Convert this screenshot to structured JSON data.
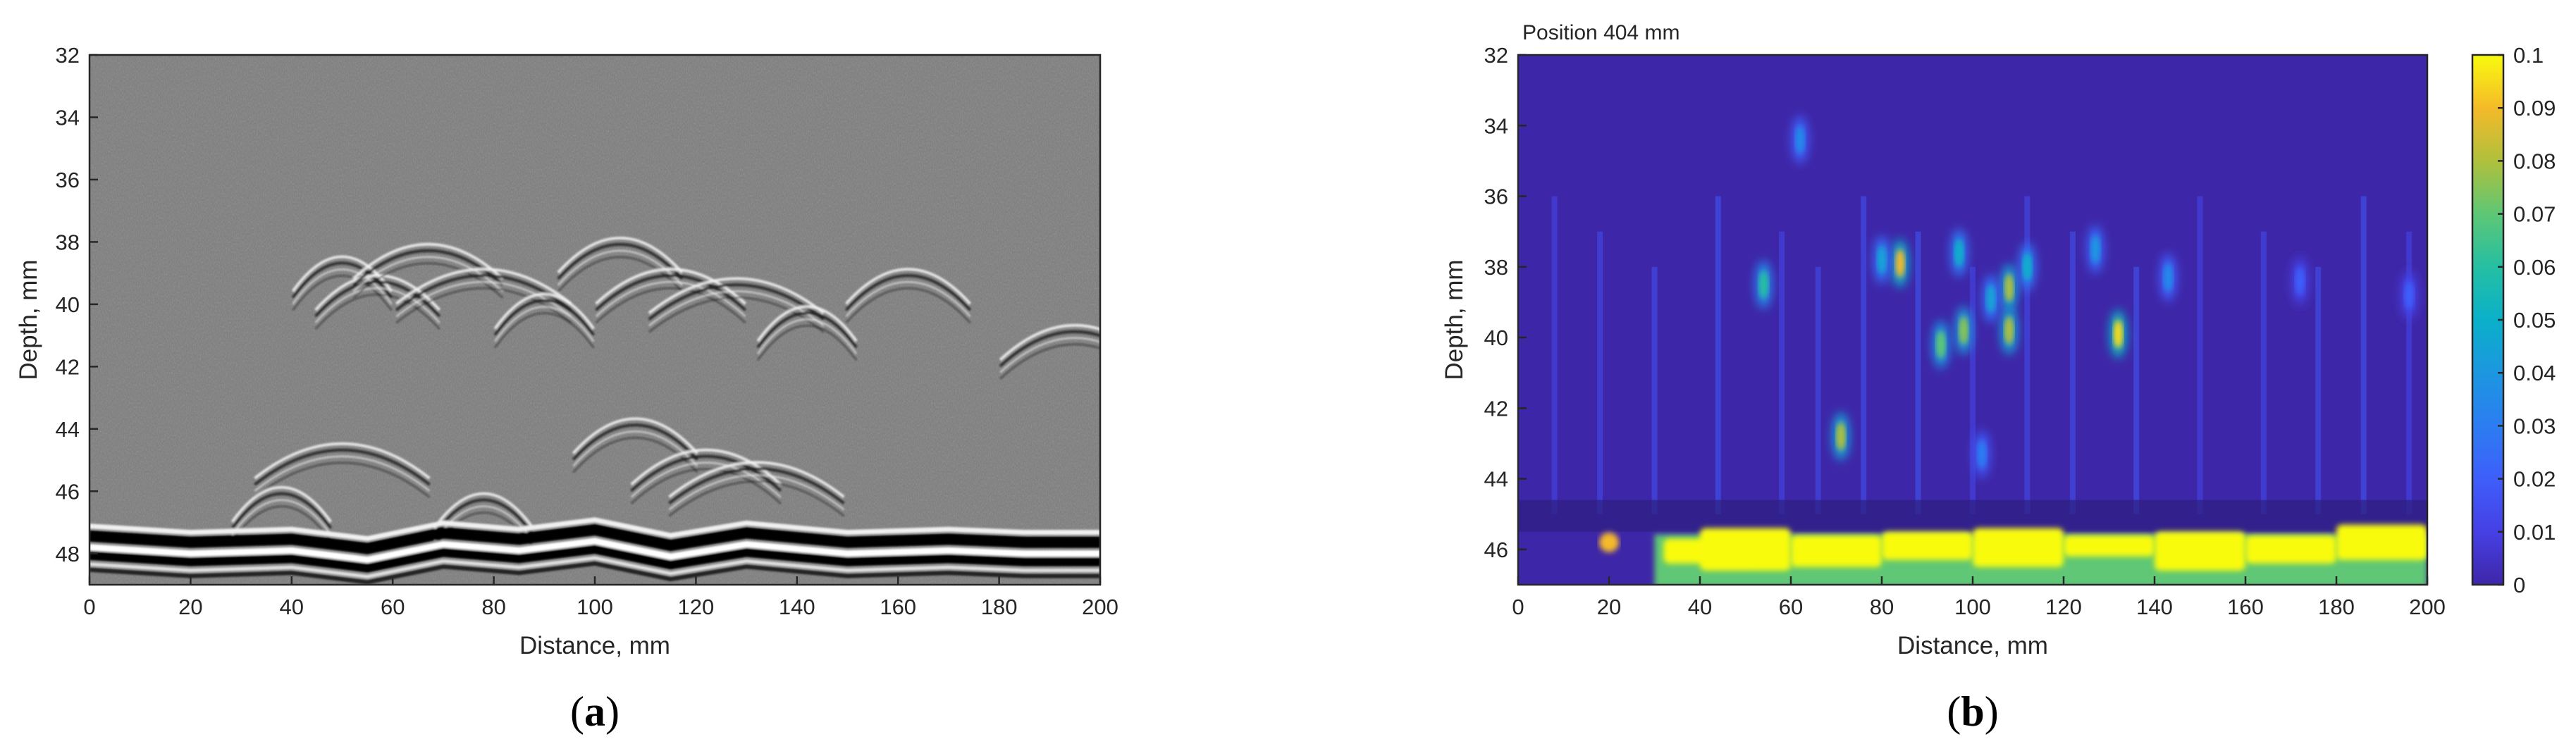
{
  "panels": {
    "a": {
      "caption_open": "(",
      "caption_letter": "a",
      "caption_close": ")"
    },
    "b": {
      "caption_open": "(",
      "caption_letter": "b",
      "caption_close": ")",
      "title": "Position 404 mm"
    }
  },
  "chart_data": [
    {
      "id": "a",
      "type": "heatmap",
      "title": "",
      "xlabel": "Distance, mm",
      "ylabel": "Depth, mm",
      "xlim": [
        0,
        200
      ],
      "ylim": [
        32,
        49
      ],
      "y_reversed": true,
      "xticks": [
        0,
        20,
        40,
        60,
        80,
        100,
        120,
        140,
        160,
        180,
        200
      ],
      "yticks": [
        32,
        34,
        36,
        38,
        40,
        42,
        44,
        46,
        48
      ],
      "colormap": "gray",
      "background": "#808080",
      "features": {
        "arcs": [
          {
            "x": 50,
            "depth": 38.0
          },
          {
            "x": 57,
            "depth": 38.6
          },
          {
            "x": 67,
            "depth": 37.6
          },
          {
            "x": 78,
            "depth": 38.4
          },
          {
            "x": 90,
            "depth": 39.2
          },
          {
            "x": 105,
            "depth": 37.4
          },
          {
            "x": 115,
            "depth": 38.4
          },
          {
            "x": 128,
            "depth": 38.7
          },
          {
            "x": 142,
            "depth": 39.6
          },
          {
            "x": 162,
            "depth": 38.4
          },
          {
            "x": 195,
            "depth": 40.2
          },
          {
            "x": 50,
            "depth": 44.0
          },
          {
            "x": 78,
            "depth": 45.6
          },
          {
            "x": 108,
            "depth": 43.2
          },
          {
            "x": 122,
            "depth": 44.2
          },
          {
            "x": 132,
            "depth": 44.6
          },
          {
            "x": 38,
            "depth": 45.4
          }
        ],
        "back_wall": [
          {
            "x": 0,
            "depth": 47.3
          },
          {
            "x": 20,
            "depth": 47.5
          },
          {
            "x": 40,
            "depth": 47.4
          },
          {
            "x": 55,
            "depth": 47.7
          },
          {
            "x": 70,
            "depth": 47.2
          },
          {
            "x": 85,
            "depth": 47.4
          },
          {
            "x": 100,
            "depth": 47.1
          },
          {
            "x": 115,
            "depth": 47.6
          },
          {
            "x": 130,
            "depth": 47.2
          },
          {
            "x": 150,
            "depth": 47.5
          },
          {
            "x": 170,
            "depth": 47.4
          },
          {
            "x": 185,
            "depth": 47.5
          },
          {
            "x": 200,
            "depth": 47.5
          }
        ]
      }
    },
    {
      "id": "b",
      "type": "heatmap",
      "title": "Position 404 mm",
      "xlabel": "Distance, mm",
      "ylabel": "Depth, mm",
      "xlim": [
        0,
        200
      ],
      "ylim": [
        32,
        47
      ],
      "y_reversed": true,
      "xticks": [
        0,
        20,
        40,
        60,
        80,
        100,
        120,
        140,
        160,
        180,
        200
      ],
      "yticks": [
        32,
        34,
        36,
        38,
        40,
        42,
        44,
        46
      ],
      "colormap": "parula",
      "colorbar": {
        "range": [
          0,
          0.1
        ],
        "ticks": [
          0,
          0.01,
          0.02,
          0.03,
          0.04,
          0.05,
          0.06,
          0.07,
          0.08,
          0.09,
          0.1
        ],
        "tick_labels": [
          "0",
          "0.01",
          "0.02",
          "0.03",
          "0.04",
          "0.05",
          "0.06",
          "0.07",
          "0.08",
          "0.09",
          "0.1"
        ]
      },
      "hotspots": [
        {
          "x": 62,
          "depth": 34.4,
          "value": 0.035
        },
        {
          "x": 54,
          "depth": 38.5,
          "value": 0.06
        },
        {
          "x": 71,
          "depth": 42.8,
          "value": 0.08
        },
        {
          "x": 84,
          "depth": 37.9,
          "value": 0.09
        },
        {
          "x": 80,
          "depth": 37.8,
          "value": 0.045
        },
        {
          "x": 93,
          "depth": 40.2,
          "value": 0.07
        },
        {
          "x": 97,
          "depth": 37.6,
          "value": 0.05
        },
        {
          "x": 98,
          "depth": 39.8,
          "value": 0.075
        },
        {
          "x": 108,
          "depth": 38.6,
          "value": 0.08
        },
        {
          "x": 108,
          "depth": 39.8,
          "value": 0.08
        },
        {
          "x": 104,
          "depth": 38.9,
          "value": 0.045
        },
        {
          "x": 112,
          "depth": 38.0,
          "value": 0.05
        },
        {
          "x": 132,
          "depth": 39.9,
          "value": 0.095
        },
        {
          "x": 127,
          "depth": 37.5,
          "value": 0.04
        },
        {
          "x": 143,
          "depth": 38.3,
          "value": 0.035
        },
        {
          "x": 102,
          "depth": 43.3,
          "value": 0.03
        },
        {
          "x": 172,
          "depth": 38.4,
          "value": 0.02
        },
        {
          "x": 196,
          "depth": 38.8,
          "value": 0.02
        }
      ],
      "back_wall": {
        "depth_top": 45.5,
        "depth_bottom": 47,
        "x_start": 30,
        "x_end": 200,
        "value": 0.1
      },
      "colors": {
        "low": "#3e26a8",
        "high": "#f9fb0e"
      }
    }
  ]
}
